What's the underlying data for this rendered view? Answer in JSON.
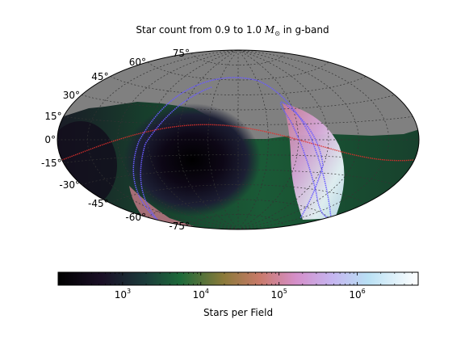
{
  "chart_data": {
    "type": "heatmap",
    "projection": "Aitoff / Hammer all-sky",
    "title": {
      "prefix": "Star count from 0.9 to 1.0 ",
      "symbol": "M",
      "subscript": "⊙",
      "suffix": " in g-band"
    },
    "latitude_labels": [
      "75°",
      "60°",
      "45°",
      "30°",
      "15°",
      "0°",
      "-15°",
      "-30°",
      "-45°",
      "-60°",
      "-75°"
    ],
    "latitude_values": [
      75,
      60,
      45,
      30,
      15,
      0,
      -15,
      -30,
      -45,
      -60,
      -75
    ],
    "grid": true,
    "colorbar": {
      "label": "Stars per Field",
      "scale": "log",
      "colormap": "cubehelix",
      "range": [
        150,
        6000000
      ],
      "ticks": [
        {
          "base": "10",
          "exp": "3",
          "value": 1000
        },
        {
          "base": "10",
          "exp": "4",
          "value": 10000
        },
        {
          "base": "10",
          "exp": "5",
          "value": 100000
        },
        {
          "base": "10",
          "exp": "6",
          "value": 1000000
        }
      ]
    },
    "overlays": [
      {
        "name": "galactic-plane",
        "color": "#6a5cff"
      },
      {
        "name": "ecliptic",
        "color": "#e0302b"
      }
    ],
    "colors": {
      "no_data": "#808080",
      "outline": "#000000"
    }
  }
}
